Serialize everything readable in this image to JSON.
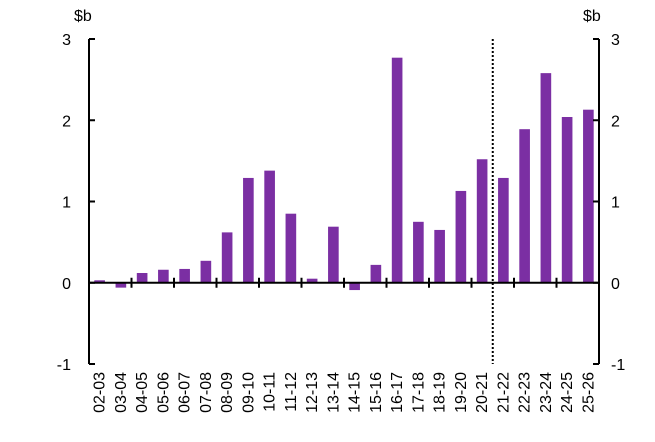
{
  "chart_data": {
    "type": "bar",
    "unit_left": "$b",
    "unit_right": "$b",
    "categories": [
      "02-03",
      "03-04",
      "04-05",
      "05-06",
      "06-07",
      "07-08",
      "08-09",
      "09-10",
      "10-11",
      "11-12",
      "12-13",
      "13-14",
      "14-15",
      "15-16",
      "16-17",
      "17-18",
      "18-19",
      "19-20",
      "20-21",
      "21-22",
      "22-23",
      "23-24",
      "24-25",
      "25-26"
    ],
    "values": [
      0.03,
      -0.06,
      0.12,
      0.16,
      0.17,
      0.27,
      0.62,
      1.29,
      1.38,
      0.85,
      0.05,
      0.69,
      -0.09,
      0.22,
      2.77,
      0.75,
      0.65,
      1.13,
      1.52,
      1.29,
      1.89,
      2.58,
      2.04,
      2.13
    ],
    "yticks": [
      -1,
      0,
      1,
      2,
      3
    ],
    "ylim": [
      -1,
      3
    ],
    "divider_after_category": "20-21",
    "bar_color": "#7b2fa3",
    "grid": false
  }
}
